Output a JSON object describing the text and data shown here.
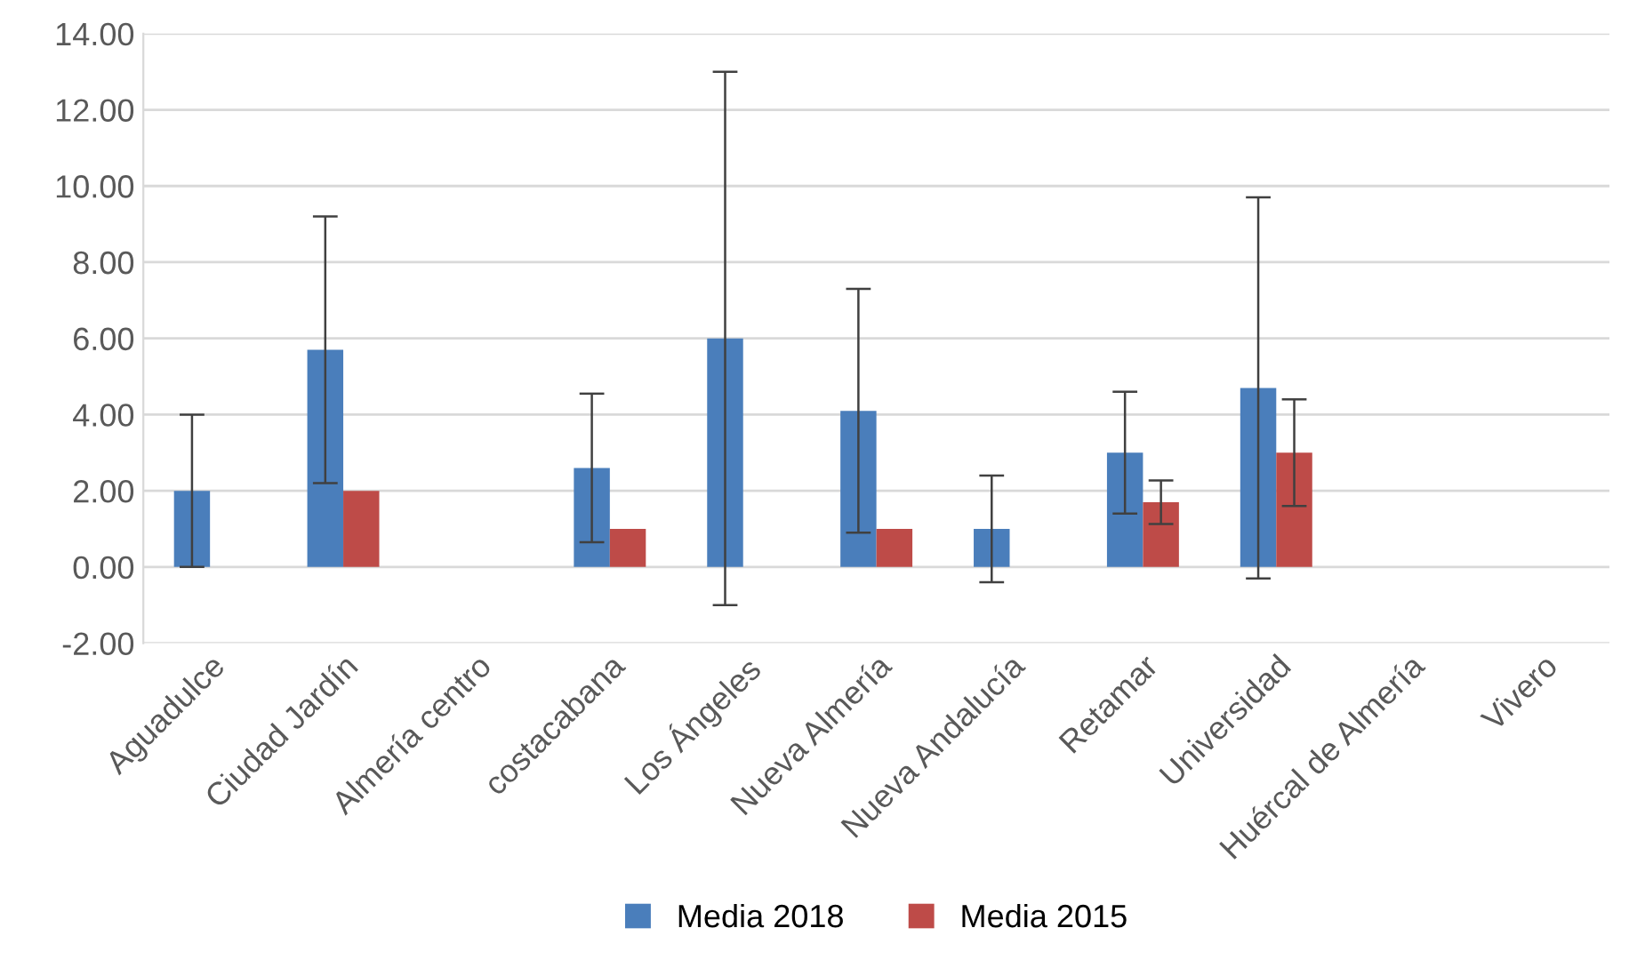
{
  "chart_data": {
    "type": "bar",
    "categories": [
      "Aguadulce",
      "Ciudad Jardín",
      "Almería centro",
      "costacabana",
      "Los Ángeles",
      "Nueva Almería",
      "Nueva Andalucía",
      "Retamar",
      "Universidad",
      "Huércal de Almería",
      "Vivero"
    ],
    "series": [
      {
        "name": "Media 2018",
        "color": "#4a7ebb",
        "values": [
          2.0,
          5.7,
          null,
          2.6,
          6.0,
          4.1,
          1.0,
          3.0,
          4.7,
          null,
          null
        ],
        "errors": [
          2.0,
          3.5,
          null,
          1.95,
          7.0,
          3.2,
          1.4,
          1.6,
          5.0,
          null,
          null
        ]
      },
      {
        "name": "Media 2015",
        "color": "#be4b48",
        "values": [
          null,
          2.0,
          null,
          1.0,
          null,
          1.0,
          null,
          1.7,
          3.0,
          null,
          null
        ],
        "errors": [
          null,
          null,
          null,
          null,
          null,
          null,
          null,
          0.57,
          1.4,
          null,
          null
        ]
      }
    ],
    "ylim": [
      -2,
      14
    ],
    "yticks": [
      {
        "value": -2,
        "label": "-2.00"
      },
      {
        "value": 0,
        "label": "0.00"
      },
      {
        "value": 2,
        "label": "2.00"
      },
      {
        "value": 4,
        "label": "4.00"
      },
      {
        "value": 6,
        "label": "6.00"
      },
      {
        "value": 8,
        "label": "8.00"
      },
      {
        "value": 10,
        "label": "10.00"
      },
      {
        "value": 12,
        "label": "12.00"
      },
      {
        "value": 14,
        "label": "14.00"
      }
    ],
    "grid": "y",
    "legend": "bottom"
  }
}
